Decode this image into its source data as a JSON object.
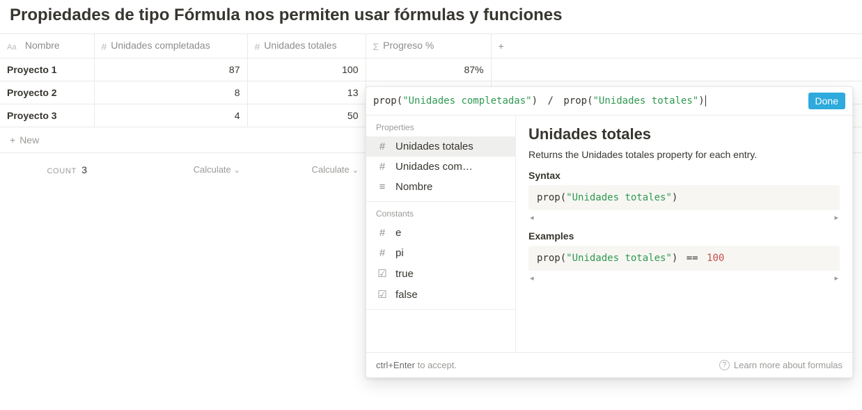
{
  "page": {
    "title": "Propiedades de tipo Fórmula nos permiten usar fórmulas y funciones"
  },
  "columns": {
    "name": "Nombre",
    "units_completed": "Unidades completadas",
    "units_total": "Unidades totales",
    "progress": "Progreso %"
  },
  "rows": [
    {
      "name": "Proyecto 1",
      "uc": "87",
      "ut": "100",
      "pr": "87%"
    },
    {
      "name": "Proyecto 2",
      "uc": "8",
      "ut": "13",
      "pr": ""
    },
    {
      "name": "Proyecto 3",
      "uc": "4",
      "ut": "50",
      "pr": ""
    }
  ],
  "new_row_label": "New",
  "footer": {
    "count_label": "count",
    "count_value": "3",
    "calculate": "Calculate"
  },
  "formula": {
    "fn": "prop",
    "arg1": "\"Unidades completadas\"",
    "op": "/",
    "arg2": "\"Unidades totales\"",
    "done": "Done"
  },
  "sidebar": {
    "properties_label": "Properties",
    "constants_label": "Constants",
    "properties": [
      {
        "icon": "hash",
        "label": "Unidades totales",
        "selected": true
      },
      {
        "icon": "hash",
        "label": "Unidades com…",
        "selected": false
      },
      {
        "icon": "lines",
        "label": "Nombre",
        "selected": false
      }
    ],
    "constants": [
      {
        "icon": "hash",
        "label": "e"
      },
      {
        "icon": "hash",
        "label": "pi"
      },
      {
        "icon": "check",
        "label": "true"
      },
      {
        "icon": "check",
        "label": "false"
      }
    ]
  },
  "detail": {
    "title": "Unidades totales",
    "desc": "Returns the Unidades totales property for each entry.",
    "syntax_label": "Syntax",
    "syntax_code_fn": "prop",
    "syntax_code_arg": "\"Unidades totales\"",
    "examples_label": "Examples",
    "example_num": "100"
  },
  "popfooter": {
    "kbd": "ctrl+Enter",
    "accept": " to accept.",
    "learn": "Learn more about formulas"
  },
  "colors": {
    "accent": "#2eaadc",
    "string": "#2e9950",
    "number": "#c84e4e"
  }
}
